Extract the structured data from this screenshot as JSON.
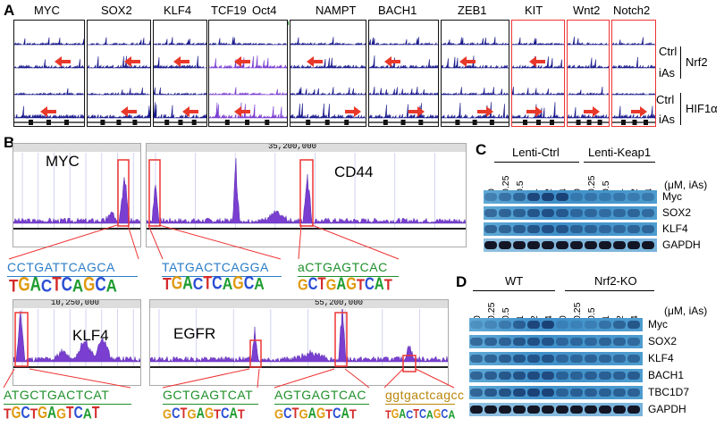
{
  "panel_a": {
    "label": "A",
    "genes": [
      "MYC",
      "SOX2",
      "KLF4",
      "TCF19",
      "Oct4",
      "NAMPT",
      "BACH1",
      "ZEB1",
      "KIT",
      "Wnt2",
      "Notch2"
    ],
    "right_labels": {
      "ctrl_top": "Ctrl",
      "ias_top": "iAs",
      "nrf2": "Nrf2",
      "ctrl_bot": "Ctrl",
      "ias_bot": "iAs",
      "hif": "HIF1α"
    },
    "colors": {
      "track": "#1a1a8c",
      "purple": "#7a3fd1",
      "arrow": "#e8382a",
      "green": "#1e8f2a",
      "red_bar": "#e8382a"
    }
  },
  "panel_b": {
    "label": "B",
    "loci": {
      "myc": "MYC",
      "cd44": "CD44",
      "klf4": "KLF4",
      "egfr": "EGFR"
    },
    "sequences": {
      "s1": "CCTGATTCAGCA",
      "s2": "TATGACTCAGGA",
      "s3": "aCTGAGTCAC",
      "s4": "ATGCTGACTCAT",
      "s5": "GCTGAGTCAT",
      "s6": "AGTGAGTCAC",
      "s7": "ggtgactcagcc"
    },
    "logos": {
      "l1": "TGACTCAGCA",
      "l2": "TGACTCAGCA",
      "l3": "GCTGAGTCAT",
      "l4": "TGCTGAGTCAT",
      "l5": "GCTGAGTCAT",
      "l6": "GCTGAGTCAT",
      "l7": "TGACTCAGCA"
    },
    "coords": {
      "cd44": "35,200,000",
      "klf4": "10,250,000",
      "egfr": "55,200,000"
    }
  },
  "panel_c": {
    "label": "C",
    "groups": [
      "Lenti-Ctrl",
      "Lenti-Keap1"
    ],
    "concentrations": [
      "0",
      "0.25",
      "0.5",
      "1",
      "2",
      "4",
      "0",
      "0.25",
      "0.5",
      "1",
      "2",
      "4"
    ],
    "unit": "(μM, iAs)",
    "rows": [
      "Myc",
      "SOX2",
      "KLF4",
      "GAPDH"
    ],
    "intensity": [
      [
        0.35,
        0.45,
        0.55,
        0.85,
        0.9,
        0.9,
        0.3,
        0.35,
        0.3,
        0.35,
        0.3,
        0.35
      ],
      [
        0.55,
        0.6,
        0.6,
        0.7,
        0.75,
        0.65,
        0.5,
        0.5,
        0.45,
        0.5,
        0.55,
        0.5
      ],
      [
        0.6,
        0.6,
        0.65,
        0.7,
        0.75,
        0.7,
        0.55,
        0.55,
        0.5,
        0.5,
        0.55,
        0.55
      ],
      [
        0.95,
        0.95,
        0.95,
        0.95,
        0.95,
        0.95,
        0.95,
        0.95,
        0.95,
        0.95,
        0.95,
        0.95
      ]
    ]
  },
  "panel_d": {
    "label": "D",
    "groups": [
      "WT",
      "Nrf2-KO"
    ],
    "concentrations": [
      "0",
      "0.25",
      "0.5",
      "1",
      "2",
      "4",
      "0",
      "0.25",
      "0.5",
      "1",
      "2",
      "4"
    ],
    "unit": "(μM, iAs)",
    "rows": [
      "Myc",
      "SOX2",
      "KLF4",
      "BACH1",
      "TBC1D7",
      "GAPDH"
    ],
    "intensity": [
      [
        0.2,
        0.25,
        0.35,
        0.6,
        0.85,
        0.9,
        0.2,
        0.2,
        0.25,
        0.4,
        0.55,
        0.7
      ],
      [
        0.55,
        0.6,
        0.6,
        0.7,
        0.75,
        0.7,
        0.5,
        0.5,
        0.5,
        0.55,
        0.55,
        0.5
      ],
      [
        0.55,
        0.6,
        0.65,
        0.7,
        0.7,
        0.7,
        0.5,
        0.5,
        0.55,
        0.55,
        0.5,
        0.55
      ],
      [
        0.6,
        0.65,
        0.7,
        0.75,
        0.8,
        0.8,
        0.55,
        0.55,
        0.6,
        0.6,
        0.6,
        0.65
      ],
      [
        0.6,
        0.7,
        0.75,
        0.85,
        0.9,
        0.9,
        0.55,
        0.6,
        0.6,
        0.6,
        0.6,
        0.6
      ],
      [
        0.95,
        0.95,
        0.95,
        0.95,
        0.95,
        0.95,
        0.95,
        0.95,
        0.95,
        0.95,
        0.95,
        0.95
      ]
    ]
  }
}
